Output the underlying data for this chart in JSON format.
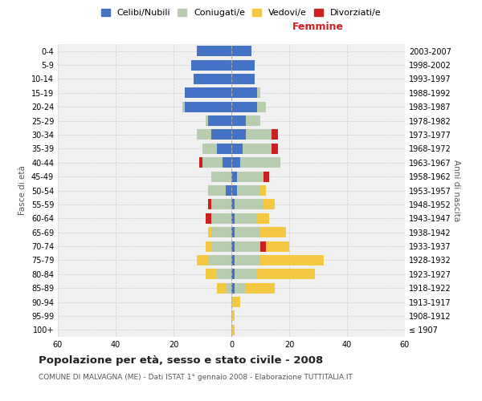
{
  "age_groups": [
    "100+",
    "95-99",
    "90-94",
    "85-89",
    "80-84",
    "75-79",
    "70-74",
    "65-69",
    "60-64",
    "55-59",
    "50-54",
    "45-49",
    "40-44",
    "35-39",
    "30-34",
    "25-29",
    "20-24",
    "15-19",
    "10-14",
    "5-9",
    "0-4"
  ],
  "birth_years": [
    "≤ 1907",
    "1908-1912",
    "1913-1917",
    "1918-1922",
    "1923-1927",
    "1928-1932",
    "1933-1937",
    "1938-1942",
    "1943-1947",
    "1948-1952",
    "1953-1957",
    "1958-1962",
    "1963-1967",
    "1968-1972",
    "1973-1977",
    "1978-1982",
    "1983-1987",
    "1988-1992",
    "1993-1997",
    "1998-2002",
    "2003-2007"
  ],
  "males": {
    "celibi": [
      0,
      0,
      0,
      0,
      0,
      0,
      0,
      0,
      0,
      0,
      2,
      0,
      3,
      5,
      7,
      8,
      16,
      16,
      13,
      14,
      12
    ],
    "coniugati": [
      0,
      0,
      0,
      2,
      5,
      8,
      7,
      7,
      7,
      7,
      6,
      7,
      7,
      5,
      5,
      1,
      1,
      0,
      0,
      0,
      0
    ],
    "vedovi": [
      0,
      0,
      0,
      3,
      4,
      4,
      2,
      1,
      0,
      0,
      0,
      0,
      0,
      0,
      0,
      0,
      0,
      0,
      0,
      0,
      0
    ],
    "divorziati": [
      0,
      0,
      0,
      0,
      0,
      0,
      0,
      0,
      2,
      1,
      0,
      0,
      1,
      0,
      0,
      0,
      0,
      0,
      0,
      0,
      0
    ]
  },
  "females": {
    "nubili": [
      0,
      0,
      0,
      1,
      1,
      1,
      1,
      1,
      1,
      1,
      2,
      2,
      3,
      4,
      5,
      5,
      9,
      9,
      8,
      8,
      7
    ],
    "coniugate": [
      0,
      0,
      0,
      4,
      8,
      9,
      9,
      9,
      8,
      10,
      8,
      9,
      14,
      10,
      9,
      5,
      3,
      1,
      0,
      0,
      0
    ],
    "vedove": [
      1,
      1,
      3,
      10,
      20,
      22,
      8,
      9,
      4,
      4,
      2,
      0,
      0,
      0,
      0,
      0,
      0,
      0,
      0,
      0,
      0
    ],
    "divorziate": [
      0,
      0,
      0,
      0,
      0,
      0,
      2,
      0,
      0,
      0,
      0,
      2,
      0,
      2,
      2,
      0,
      0,
      0,
      0,
      0,
      0
    ]
  },
  "colors": {
    "celibi": "#4472C4",
    "coniugati": "#B8CCB0",
    "vedovi": "#F5C842",
    "divorziati": "#CC2020"
  },
  "title": "Popolazione per età, sesso e stato civile - 2008",
  "subtitle": "COMUNE DI MALVAGNA (ME) - Dati ISTAT 1° gennaio 2008 - Elaborazione TUTTITALIA.IT",
  "xlabel_right": "Femmine",
  "ylabel_left": "Fasce di età",
  "ylabel_right": "Anni di nascita",
  "xlim": 60,
  "bg_color": "#ffffff",
  "plot_bg_color": "#f0f0f0",
  "legend_labels": [
    "Celibi/Nubili",
    "Coniugati/e",
    "Vedovi/e",
    "Divorziati/e"
  ]
}
